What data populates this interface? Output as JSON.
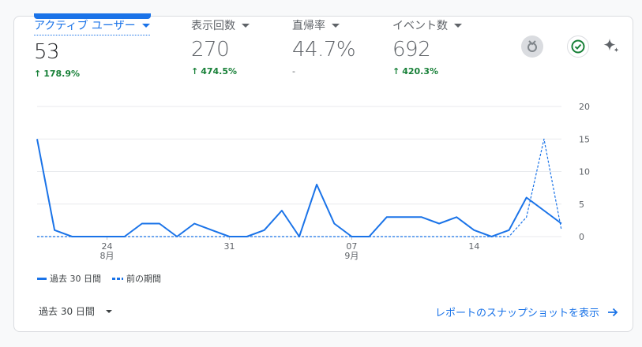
{
  "metrics": [
    {
      "label": "アクティブ ユーザー",
      "value": "53",
      "change": "178.9%",
      "trend": "up",
      "active": true
    },
    {
      "label": "表示回数",
      "value": "270",
      "change": "474.5%",
      "trend": "up",
      "active": false
    },
    {
      "label": "直帰率",
      "value": "44.7%",
      "change": "-",
      "trend": "none",
      "active": false
    },
    {
      "label": "イベント数",
      "value": "692",
      "change": "420.3%",
      "trend": "up",
      "active": false
    }
  ],
  "icons": {
    "medal": "medal-icon",
    "check": "check-circle-icon",
    "sparkle": "sparkle-icon"
  },
  "legend": {
    "current": "過去 30 日間",
    "previous": "前の期間"
  },
  "footer": {
    "range": "過去 30 日間",
    "link": "レポートのスナップショットを表示"
  },
  "colors": {
    "accent": "#1a73e8",
    "positive": "#188038"
  },
  "chart_data": {
    "type": "line",
    "x_labels": [
      "24\n8月",
      "31",
      "07\n9月",
      "14"
    ],
    "y_ticks": [
      0,
      5,
      10,
      15,
      20
    ],
    "ylim": [
      0,
      20
    ],
    "series": [
      {
        "name": "過去 30 日間",
        "style": "solid",
        "values": [
          15,
          1,
          0,
          0,
          0,
          0,
          2,
          2,
          0,
          2,
          1,
          0,
          0,
          1,
          4,
          0,
          8,
          2,
          0,
          0,
          3,
          3,
          3,
          2,
          3,
          1,
          0,
          1,
          6,
          4,
          2
        ]
      },
      {
        "name": "前の期間",
        "style": "dashed",
        "values": [
          0,
          0,
          0,
          0,
          0,
          0,
          0,
          0,
          0,
          0,
          0,
          0,
          0,
          0,
          0,
          0,
          0,
          0,
          0,
          0,
          0,
          0,
          0,
          0,
          0,
          0,
          0,
          0,
          3,
          15,
          1
        ]
      }
    ]
  }
}
